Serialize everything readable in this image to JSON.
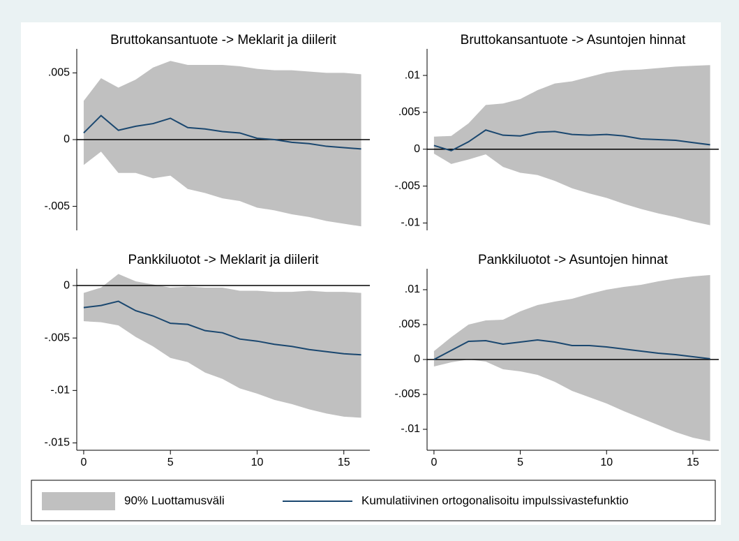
{
  "chart_data": [
    {
      "type": "line",
      "title": "Bruttokansantuote -> Meklarit ja diilerit",
      "x": [
        0,
        1,
        2,
        3,
        4,
        5,
        6,
        7,
        8,
        9,
        10,
        11,
        12,
        13,
        14,
        15,
        16
      ],
      "values": [
        0.0005,
        0.0018,
        0.0007,
        0.001,
        0.0012,
        0.0016,
        0.0009,
        0.0008,
        0.0006,
        0.0005,
        0.0001,
        0.0,
        -0.0002,
        -0.0003,
        -0.0005,
        -0.0006,
        -0.0007
      ],
      "upper": [
        0.0029,
        0.0046,
        0.0039,
        0.0045,
        0.0054,
        0.0059,
        0.0056,
        0.0056,
        0.0056,
        0.0055,
        0.0053,
        0.0052,
        0.0052,
        0.0051,
        0.005,
        0.005,
        0.0049
      ],
      "lower": [
        -0.0019,
        -0.0009,
        -0.0025,
        -0.0025,
        -0.0029,
        -0.0027,
        -0.0037,
        -0.004,
        -0.0044,
        -0.0046,
        -0.0051,
        -0.0053,
        -0.0056,
        -0.0058,
        -0.0061,
        -0.0063,
        -0.0065
      ],
      "xlim": [
        -0.4,
        16.5
      ],
      "ylim": [
        -0.0068,
        0.0068
      ],
      "yticks": [
        {
          "value": 0.005,
          "label": ".005"
        },
        0,
        {
          "value": -0.005,
          "label": "-.005"
        }
      ]
    },
    {
      "type": "line",
      "title": "Bruttokansantuote -> Asuntojen hinnat",
      "x": [
        0,
        1,
        2,
        3,
        4,
        5,
        6,
        7,
        8,
        9,
        10,
        11,
        12,
        13,
        14,
        15,
        16
      ],
      "values": [
        0.0005,
        -0.0002,
        0.001,
        0.0026,
        0.0019,
        0.0018,
        0.0023,
        0.0024,
        0.002,
        0.0019,
        0.002,
        0.0018,
        0.0014,
        0.0013,
        0.0012,
        0.0009,
        0.0006
      ],
      "upper": [
        0.0017,
        0.0018,
        0.0035,
        0.006,
        0.0062,
        0.0068,
        0.008,
        0.0089,
        0.0092,
        0.0098,
        0.0104,
        0.0107,
        0.0108,
        0.011,
        0.0112,
        0.0113,
        0.0114
      ],
      "lower": [
        -0.0006,
        -0.002,
        -0.0014,
        -0.0007,
        -0.0024,
        -0.0032,
        -0.0035,
        -0.0043,
        -0.0053,
        -0.006,
        -0.0066,
        -0.0074,
        -0.0081,
        -0.0087,
        -0.0092,
        -0.0098,
        -0.0103
      ],
      "xlim": [
        -0.4,
        16.5
      ],
      "ylim": [
        -0.011,
        0.0136
      ],
      "yticks": [
        {
          "value": 0.01,
          "label": ".01"
        },
        {
          "value": 0.005,
          "label": ".005"
        },
        0,
        {
          "value": -0.005,
          "label": "-.005"
        },
        {
          "value": -0.01,
          "label": "-.01"
        }
      ]
    },
    {
      "type": "line",
      "title": "Pankkiluotot -> Meklarit ja diilerit",
      "x": [
        0,
        1,
        2,
        3,
        4,
        5,
        6,
        7,
        8,
        9,
        10,
        11,
        12,
        13,
        14,
        15,
        16
      ],
      "values": [
        -0.0021,
        -0.0019,
        -0.0015,
        -0.0024,
        -0.0029,
        -0.0036,
        -0.0037,
        -0.0043,
        -0.0045,
        -0.0051,
        -0.0053,
        -0.0056,
        -0.0058,
        -0.0061,
        -0.0063,
        -0.0065,
        -0.0066
      ],
      "upper": [
        -0.0007,
        -0.0002,
        0.0011,
        0.0004,
        0.0001,
        -0.0002,
        -0.0001,
        -0.0002,
        -0.0002,
        -0.0005,
        -0.0005,
        -0.0006,
        -0.0006,
        -0.0005,
        -0.0006,
        -0.0006,
        -0.0007
      ],
      "lower": [
        -0.0034,
        -0.0035,
        -0.0038,
        -0.0049,
        -0.0058,
        -0.0069,
        -0.0073,
        -0.0083,
        -0.0089,
        -0.0098,
        -0.0103,
        -0.0109,
        -0.0113,
        -0.0118,
        -0.0122,
        -0.0125,
        -0.0126
      ],
      "xlim": [
        -0.4,
        16.5
      ],
      "ylim": [
        -0.0157,
        0.0016
      ],
      "xticks": [
        0,
        5,
        10,
        15
      ],
      "yticks": [
        0,
        {
          "value": -0.005,
          "label": "-.005"
        },
        {
          "value": -0.01,
          "label": "-.01"
        },
        {
          "value": -0.015,
          "label": "-.015"
        }
      ]
    },
    {
      "type": "line",
      "title": "Pankkiluotot -> Asuntojen hinnat",
      "x": [
        0,
        1,
        2,
        3,
        4,
        5,
        6,
        7,
        8,
        9,
        10,
        11,
        12,
        13,
        14,
        15,
        16
      ],
      "values": [
        0,
        0.0013,
        0.0026,
        0.0027,
        0.0022,
        0.0025,
        0.0028,
        0.0025,
        0.002,
        0.002,
        0.0018,
        0.0015,
        0.0012,
        0.0009,
        0.0007,
        0.0004,
        0.0001
      ],
      "upper": [
        0.0012,
        0.0032,
        0.005,
        0.0056,
        0.0057,
        0.0069,
        0.0078,
        0.0083,
        0.0087,
        0.0094,
        0.01,
        0.0104,
        0.0107,
        0.0112,
        0.0116,
        0.0119,
        0.0121
      ],
      "lower": [
        -0.001,
        -0.0004,
        0,
        -0.0003,
        -0.0014,
        -0.0017,
        -0.0022,
        -0.0032,
        -0.0045,
        -0.0054,
        -0.0063,
        -0.0074,
        -0.0084,
        -0.0094,
        -0.0104,
        -0.0112,
        -0.0117
      ],
      "xlim": [
        -0.4,
        16.5
      ],
      "ylim": [
        -0.013,
        0.013
      ],
      "xticks": [
        0,
        5,
        10,
        15
      ],
      "yticks": [
        {
          "value": 0.01,
          "label": ".01"
        },
        {
          "value": 0.005,
          "label": ".005"
        },
        0,
        {
          "value": -0.005,
          "label": "-.005"
        },
        {
          "value": -0.01,
          "label": "-.01"
        }
      ]
    }
  ],
  "legend": {
    "band": {
      "name": "90% Luottamusväli",
      "color": "#c0c0c0"
    },
    "line": {
      "name": "Kumulatiivinen ortogonalisoitu impulssivastefunktio",
      "color": "#1a476f"
    }
  }
}
